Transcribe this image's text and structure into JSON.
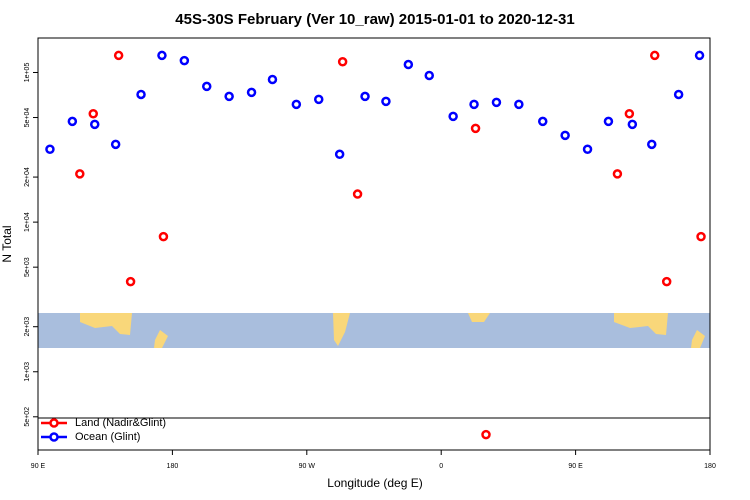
{
  "chart_data": {
    "type": "scatter",
    "title": "45S-30S February (Ver 10_raw)   2015-01-01 to 2020-12-31",
    "x_label": "Longitude (deg E)",
    "y_label": "N Total",
    "log_y": true,
    "legend": "bottom-left",
    "xlim": [
      90,
      540
    ],
    "ylim": [
      300,
      170000
    ],
    "xticks": [
      {
        "value": 90,
        "label": "90 E"
      },
      {
        "value": 180,
        "label": "180"
      },
      {
        "value": 270,
        "label": "90 W"
      },
      {
        "value": 360,
        "label": "0"
      },
      {
        "value": 450,
        "label": "90 E"
      },
      {
        "value": 540,
        "label": "180"
      }
    ],
    "yticks": [
      {
        "value": 500,
        "label": "5e+02"
      },
      {
        "value": 1000,
        "label": "1e+03"
      },
      {
        "value": 2000,
        "label": "2e+03"
      },
      {
        "value": 5000,
        "label": "5e+03"
      },
      {
        "value": 10000,
        "label": "1e+04"
      },
      {
        "value": 20000,
        "label": "2e+04"
      },
      {
        "value": 50000,
        "label": "5e+04"
      },
      {
        "value": 100000,
        "label": "1e+05"
      }
    ],
    "series": [
      {
        "name": "Land (Nadir&Glint)",
        "color": "#ff0000",
        "x": [
          118,
          127,
          144,
          152,
          174,
          294,
          304,
          383,
          390,
          478,
          486,
          503,
          511,
          534
        ],
        "values": [
          21000,
          53000,
          130000,
          4000,
          8000,
          118000,
          15400,
          42300,
          380,
          21000,
          53000,
          130000,
          4000,
          8000
        ]
      },
      {
        "name": "Ocean (Glint)",
        "color": "#0000ff",
        "x": [
          98,
          113,
          128,
          142,
          159,
          173,
          188,
          203,
          218,
          233,
          247,
          263,
          278,
          292,
          309,
          323,
          338,
          352,
          368,
          382,
          397,
          412,
          428,
          443,
          458,
          472,
          488,
          501,
          519,
          533
        ],
        "values": [
          30700,
          47100,
          45000,
          33100,
          71300,
          130000,
          120000,
          80700,
          69200,
          73600,
          89800,
          61200,
          66100,
          28400,
          69200,
          64100,
          113000,
          95500,
          50900,
          61200,
          63100,
          61200,
          47100,
          38000,
          30700,
          47100,
          45000,
          33100,
          71300,
          130000
        ]
      }
    ]
  }
}
